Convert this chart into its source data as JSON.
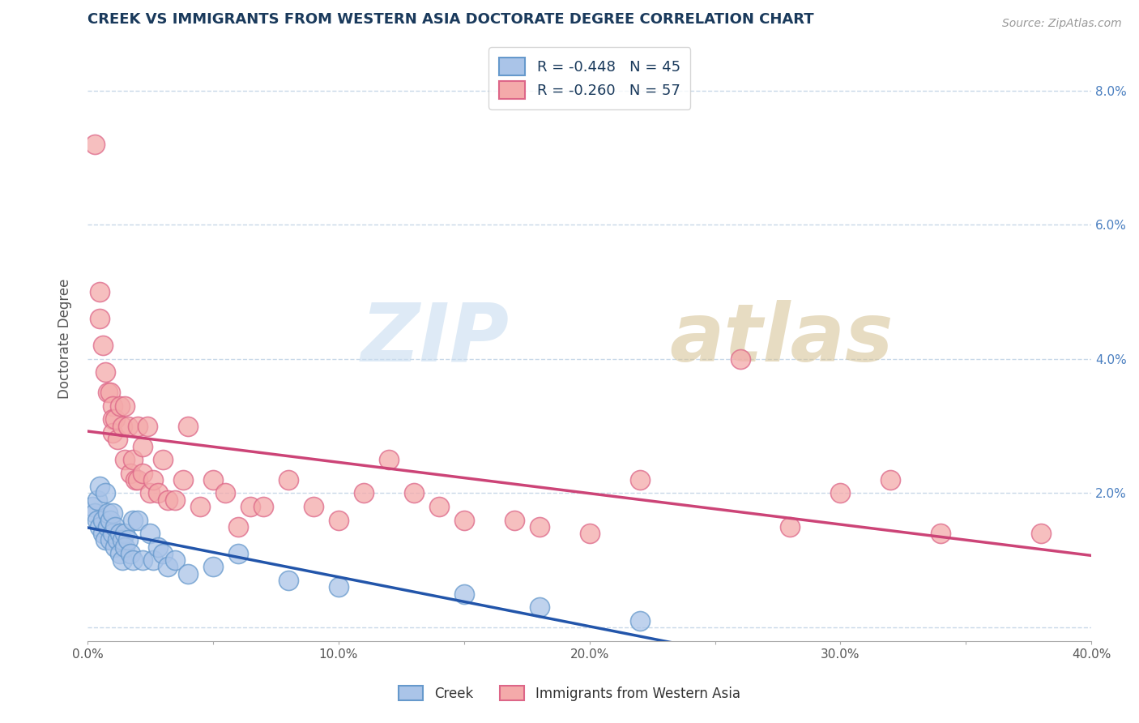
{
  "title": "CREEK VS IMMIGRANTS FROM WESTERN ASIA DOCTORATE DEGREE CORRELATION CHART",
  "source_text": "Source: ZipAtlas.com",
  "ylabel": "Doctorate Degree",
  "xlim": [
    0.0,
    0.4
  ],
  "ylim": [
    -0.002,
    0.088
  ],
  "xtick_labels": [
    "0.0%",
    "",
    "10.0%",
    "",
    "20.0%",
    "",
    "30.0%",
    "",
    "40.0%"
  ],
  "xtick_values": [
    0.0,
    0.05,
    0.1,
    0.15,
    0.2,
    0.25,
    0.3,
    0.35,
    0.4
  ],
  "ytick_labels_right": [
    "",
    "2.0%",
    "4.0%",
    "6.0%",
    "8.0%"
  ],
  "ytick_values": [
    0.0,
    0.02,
    0.04,
    0.06,
    0.08
  ],
  "legend_r1": "R = -0.448   N = 45",
  "legend_r2": "R = -0.260   N = 57",
  "creek_color": "#aac4e8",
  "immigrants_color": "#f4aaaa",
  "creek_edge_color": "#6699cc",
  "immigrants_edge_color": "#dd6688",
  "creek_line_color": "#2255aa",
  "immigrants_line_color": "#cc4477",
  "background_color": "#ffffff",
  "grid_color": "#c8d8e8",
  "title_color": "#1a3a5c",
  "tick_color_right": "#4a7fc0",
  "creek_scatter": [
    [
      0.002,
      0.018
    ],
    [
      0.003,
      0.017
    ],
    [
      0.004,
      0.016
    ],
    [
      0.004,
      0.019
    ],
    [
      0.005,
      0.015
    ],
    [
      0.005,
      0.021
    ],
    [
      0.006,
      0.014
    ],
    [
      0.006,
      0.016
    ],
    [
      0.007,
      0.013
    ],
    [
      0.007,
      0.02
    ],
    [
      0.008,
      0.015
    ],
    [
      0.008,
      0.017
    ],
    [
      0.009,
      0.013
    ],
    [
      0.009,
      0.016
    ],
    [
      0.01,
      0.014
    ],
    [
      0.01,
      0.017
    ],
    [
      0.011,
      0.012
    ],
    [
      0.011,
      0.015
    ],
    [
      0.012,
      0.013
    ],
    [
      0.013,
      0.011
    ],
    [
      0.013,
      0.014
    ],
    [
      0.014,
      0.01
    ],
    [
      0.014,
      0.013
    ],
    [
      0.015,
      0.014
    ],
    [
      0.015,
      0.012
    ],
    [
      0.016,
      0.013
    ],
    [
      0.017,
      0.011
    ],
    [
      0.018,
      0.01
    ],
    [
      0.018,
      0.016
    ],
    [
      0.02,
      0.016
    ],
    [
      0.022,
      0.01
    ],
    [
      0.025,
      0.014
    ],
    [
      0.026,
      0.01
    ],
    [
      0.028,
      0.012
    ],
    [
      0.03,
      0.011
    ],
    [
      0.032,
      0.009
    ],
    [
      0.035,
      0.01
    ],
    [
      0.04,
      0.008
    ],
    [
      0.05,
      0.009
    ],
    [
      0.06,
      0.011
    ],
    [
      0.08,
      0.007
    ],
    [
      0.1,
      0.006
    ],
    [
      0.15,
      0.005
    ],
    [
      0.18,
      0.003
    ],
    [
      0.22,
      0.001
    ]
  ],
  "immigrants_scatter": [
    [
      0.003,
      0.072
    ],
    [
      0.005,
      0.05
    ],
    [
      0.005,
      0.046
    ],
    [
      0.006,
      0.042
    ],
    [
      0.007,
      0.038
    ],
    [
      0.008,
      0.035
    ],
    [
      0.009,
      0.035
    ],
    [
      0.01,
      0.033
    ],
    [
      0.01,
      0.031
    ],
    [
      0.01,
      0.029
    ],
    [
      0.011,
      0.031
    ],
    [
      0.012,
      0.028
    ],
    [
      0.013,
      0.033
    ],
    [
      0.014,
      0.03
    ],
    [
      0.015,
      0.025
    ],
    [
      0.015,
      0.033
    ],
    [
      0.016,
      0.03
    ],
    [
      0.017,
      0.023
    ],
    [
      0.018,
      0.025
    ],
    [
      0.019,
      0.022
    ],
    [
      0.02,
      0.022
    ],
    [
      0.02,
      0.03
    ],
    [
      0.022,
      0.023
    ],
    [
      0.022,
      0.027
    ],
    [
      0.024,
      0.03
    ],
    [
      0.025,
      0.02
    ],
    [
      0.026,
      0.022
    ],
    [
      0.028,
      0.02
    ],
    [
      0.03,
      0.025
    ],
    [
      0.032,
      0.019
    ],
    [
      0.035,
      0.019
    ],
    [
      0.038,
      0.022
    ],
    [
      0.04,
      0.03
    ],
    [
      0.045,
      0.018
    ],
    [
      0.05,
      0.022
    ],
    [
      0.055,
      0.02
    ],
    [
      0.06,
      0.015
    ],
    [
      0.065,
      0.018
    ],
    [
      0.07,
      0.018
    ],
    [
      0.08,
      0.022
    ],
    [
      0.09,
      0.018
    ],
    [
      0.1,
      0.016
    ],
    [
      0.11,
      0.02
    ],
    [
      0.12,
      0.025
    ],
    [
      0.13,
      0.02
    ],
    [
      0.14,
      0.018
    ],
    [
      0.15,
      0.016
    ],
    [
      0.17,
      0.016
    ],
    [
      0.18,
      0.015
    ],
    [
      0.2,
      0.014
    ],
    [
      0.22,
      0.022
    ],
    [
      0.26,
      0.04
    ],
    [
      0.28,
      0.015
    ],
    [
      0.3,
      0.02
    ],
    [
      0.32,
      0.022
    ],
    [
      0.34,
      0.014
    ],
    [
      0.38,
      0.014
    ]
  ]
}
